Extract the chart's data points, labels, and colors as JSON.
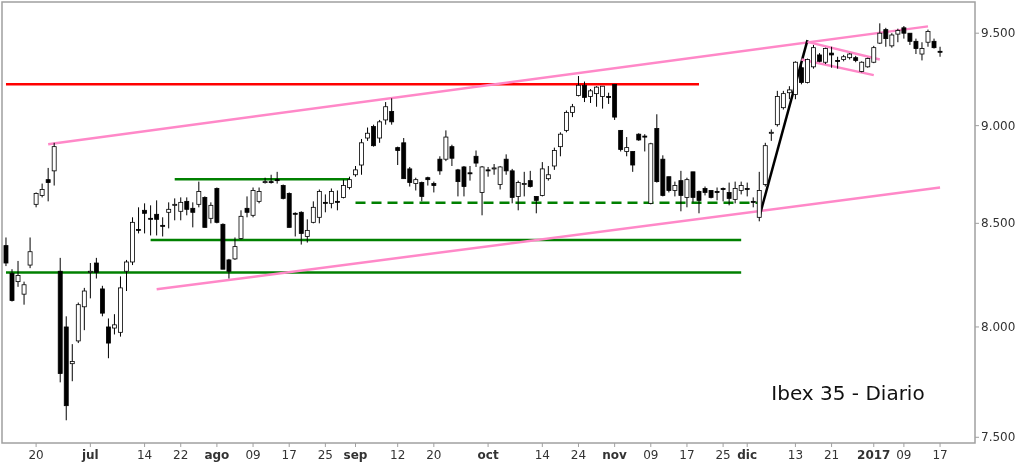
{
  "chart_data": {
    "type": "candlestick",
    "title": "Ibex 35 - Diario",
    "log": true,
    "ylim": [
      7475,
      9675
    ],
    "yticks": [
      {
        "value": 7500,
        "label": "7.500"
      },
      {
        "value": 8000,
        "label": "8.000"
      },
      {
        "value": 8500,
        "label": "8.500"
      },
      {
        "value": 9000,
        "label": "9.000"
      },
      {
        "value": 9500,
        "label": "9.500"
      }
    ],
    "categories": [
      null,
      null,
      null,
      null,
      null,
      "20",
      null,
      null,
      null,
      null,
      null,
      null,
      null,
      null,
      "jul",
      null,
      null,
      null,
      null,
      null,
      null,
      null,
      null,
      "14",
      null,
      null,
      null,
      null,
      null,
      "22",
      null,
      null,
      null,
      null,
      null,
      "ago",
      null,
      null,
      null,
      null,
      null,
      "09",
      null,
      null,
      null,
      null,
      null,
      "17",
      null,
      null,
      null,
      null,
      null,
      "25",
      null,
      null,
      null,
      null,
      "sep",
      null,
      null,
      null,
      null,
      null,
      null,
      "12",
      null,
      null,
      null,
      null,
      null,
      "20",
      null,
      null,
      null,
      null,
      null,
      null,
      null,
      null,
      "oct",
      null,
      null,
      null,
      null,
      null,
      null,
      null,
      null,
      "14",
      null,
      null,
      null,
      null,
      null,
      "24",
      null,
      null,
      null,
      null,
      null,
      "nov",
      null,
      null,
      null,
      null,
      null,
      "09",
      null,
      null,
      null,
      null,
      null,
      "17",
      null,
      null,
      null,
      null,
      null,
      "25",
      null,
      null,
      null,
      "dic",
      null,
      null,
      null,
      null,
      null,
      null,
      null,
      "13",
      null,
      null,
      null,
      null,
      null,
      "21",
      null,
      null,
      null,
      null,
      null,
      null,
      "2017",
      null,
      null,
      null,
      null,
      "09",
      null,
      null,
      null,
      null,
      null,
      "17"
    ],
    "color": "#000000",
    "ohlc": [
      [
        8390,
        8430,
        8290,
        8305
      ],
      [
        8255,
        8275,
        8120,
        8125
      ],
      [
        8215,
        8315,
        8190,
        8245
      ],
      [
        8155,
        8215,
        8105,
        8200
      ],
      [
        8295,
        8430,
        8280,
        8360
      ],
      [
        8595,
        8655,
        8580,
        8650
      ],
      [
        8640,
        8700,
        8630,
        8670
      ],
      [
        8720,
        8780,
        8610,
        8705
      ],
      [
        8765,
        8910,
        8690,
        8890
      ],
      [
        8265,
        8330,
        7745,
        7785
      ],
      [
        8000,
        8050,
        7575,
        7640
      ],
      [
        7830,
        7920,
        7750,
        7840
      ],
      [
        7935,
        8115,
        7925,
        8105
      ],
      [
        8095,
        8185,
        7985,
        8170
      ],
      [
        8260,
        8305,
        8135,
        8265
      ],
      [
        8305,
        8330,
        8230,
        8260
      ],
      [
        8180,
        8195,
        8050,
        8065
      ],
      [
        8000,
        8040,
        7855,
        7925
      ],
      [
        7995,
        8060,
        7965,
        8010
      ],
      [
        7975,
        8240,
        7955,
        8185
      ],
      [
        8265,
        8320,
        8170,
        8310
      ],
      [
        8310,
        8530,
        8295,
        8505
      ],
      [
        8470,
        8580,
        8450,
        8465
      ],
      [
        8565,
        8600,
        8450,
        8550
      ],
      [
        8525,
        8590,
        8440,
        8520
      ],
      [
        8545,
        8615,
        8440,
        8520
      ],
      [
        8490,
        8530,
        8435,
        8485
      ],
      [
        8555,
        8605,
        8475,
        8570
      ],
      [
        8590,
        8625,
        8515,
        8595
      ],
      [
        8560,
        8630,
        8515,
        8605
      ],
      [
        8610,
        8630,
        8540,
        8570
      ],
      [
        8575,
        8605,
        8480,
        8555
      ],
      [
        8595,
        8710,
        8580,
        8660
      ],
      [
        8630,
        8635,
        8480,
        8480
      ],
      [
        8525,
        8605,
        8500,
        8590
      ],
      [
        8675,
        8680,
        8500,
        8505
      ],
      [
        8495,
        8500,
        8275,
        8275
      ],
      [
        8320,
        8325,
        8230,
        8265
      ],
      [
        8325,
        8430,
        8320,
        8385
      ],
      [
        8425,
        8565,
        8420,
        8535
      ],
      [
        8575,
        8635,
        8530,
        8555
      ],
      [
        8540,
        8680,
        8530,
        8665
      ],
      [
        8610,
        8680,
        8600,
        8660
      ],
      [
        8705,
        8730,
        8700,
        8710
      ],
      [
        8710,
        8745,
        8700,
        8705
      ],
      [
        8720,
        8760,
        8700,
        8715
      ],
      [
        8690,
        8695,
        8620,
        8625
      ],
      [
        8650,
        8655,
        8480,
        8480
      ],
      [
        8550,
        8555,
        8435,
        8545
      ],
      [
        8555,
        8560,
        8395,
        8450
      ],
      [
        8435,
        8520,
        8405,
        8465
      ],
      [
        8505,
        8610,
        8500,
        8580
      ],
      [
        8530,
        8670,
        8500,
        8660
      ],
      [
        8605,
        8645,
        8555,
        8600
      ],
      [
        8600,
        8675,
        8575,
        8660
      ],
      [
        8610,
        8665,
        8565,
        8605
      ],
      [
        8630,
        8720,
        8625,
        8690
      ],
      [
        8680,
        8735,
        8670,
        8720
      ],
      [
        8745,
        8790,
        8735,
        8770
      ],
      [
        8795,
        8930,
        8745,
        8910
      ],
      [
        8935,
        8990,
        8920,
        8960
      ],
      [
        8995,
        9005,
        8890,
        8895
      ],
      [
        8935,
        9030,
        8910,
        9020
      ],
      [
        9030,
        9125,
        9005,
        9100
      ],
      [
        9075,
        9145,
        9005,
        9020
      ],
      [
        8885,
        8890,
        8795,
        8870
      ],
      [
        8910,
        8935,
        8725,
        8725
      ],
      [
        8775,
        8785,
        8685,
        8705
      ],
      [
        8700,
        8730,
        8665,
        8720
      ],
      [
        8705,
        8710,
        8610,
        8635
      ],
      [
        8730,
        8735,
        8690,
        8720
      ],
      [
        8700,
        8710,
        8655,
        8690
      ],
      [
        8825,
        8840,
        8745,
        8765
      ],
      [
        8825,
        8975,
        8815,
        8940
      ],
      [
        8890,
        8900,
        8790,
        8830
      ],
      [
        8770,
        8775,
        8635,
        8710
      ],
      [
        8785,
        8790,
        8635,
        8685
      ],
      [
        8755,
        8790,
        8715,
        8750
      ],
      [
        8840,
        8870,
        8785,
        8805
      ],
      [
        8655,
        8790,
        8540,
        8785
      ],
      [
        8770,
        8785,
        8735,
        8765
      ],
      [
        8775,
        8800,
        8745,
        8780
      ],
      [
        8695,
        8790,
        8670,
        8785
      ],
      [
        8825,
        8850,
        8745,
        8765
      ],
      [
        8765,
        8775,
        8600,
        8630
      ],
      [
        8635,
        8715,
        8565,
        8705
      ],
      [
        8695,
        8760,
        8635,
        8700
      ],
      [
        8715,
        8765,
        8680,
        8685
      ],
      [
        8635,
        8635,
        8550,
        8615
      ],
      [
        8640,
        8810,
        8635,
        8775
      ],
      [
        8725,
        8790,
        8715,
        8745
      ],
      [
        8790,
        8885,
        8770,
        8870
      ],
      [
        8890,
        8965,
        8840,
        8955
      ],
      [
        8975,
        9080,
        8965,
        9070
      ],
      [
        9070,
        9115,
        9045,
        9100
      ],
      [
        9160,
        9265,
        9155,
        9215
      ],
      [
        9215,
        9235,
        9125,
        9150
      ],
      [
        9155,
        9195,
        9120,
        9185
      ],
      [
        9170,
        9210,
        9100,
        9205
      ],
      [
        9155,
        9210,
        9090,
        9210
      ],
      [
        9155,
        9175,
        9115,
        9150
      ],
      [
        9220,
        9220,
        9030,
        9045
      ],
      [
        8975,
        8975,
        8865,
        8875
      ],
      [
        8865,
        8940,
        8840,
        8885
      ],
      [
        8865,
        8865,
        8760,
        8795
      ],
      [
        8955,
        8960,
        8920,
        8925
      ],
      [
        8945,
        8955,
        8865,
        8940
      ],
      [
        8600,
        8910,
        8595,
        8905
      ],
      [
        8985,
        9060,
        8705,
        8710
      ],
      [
        8825,
        8845,
        8635,
        8640
      ],
      [
        8735,
        8735,
        8655,
        8665
      ],
      [
        8665,
        8710,
        8635,
        8690
      ],
      [
        8715,
        8765,
        8560,
        8640
      ],
      [
        8630,
        8730,
        8580,
        8720
      ],
      [
        8760,
        8760,
        8605,
        8630
      ],
      [
        8660,
        8665,
        8550,
        8615
      ],
      [
        8675,
        8685,
        8640,
        8655
      ],
      [
        8665,
        8665,
        8625,
        8630
      ],
      [
        8660,
        8680,
        8615,
        8655
      ],
      [
        8675,
        8680,
        8610,
        8670
      ],
      [
        8655,
        8705,
        8590,
        8625
      ],
      [
        8620,
        8710,
        8600,
        8675
      ],
      [
        8665,
        8710,
        8645,
        8690
      ],
      [
        8675,
        8705,
        8635,
        8670
      ],
      [
        8610,
        8630,
        8580,
        8605
      ],
      [
        8530,
        8760,
        8510,
        8665
      ],
      [
        8695,
        8910,
        8685,
        8895
      ],
      [
        8960,
        8980,
        8920,
        8965
      ],
      [
        9005,
        9185,
        8995,
        9155
      ],
      [
        9095,
        9185,
        9085,
        9170
      ],
      [
        9175,
        9210,
        9140,
        9190
      ],
      [
        9165,
        9345,
        9140,
        9340
      ],
      [
        9310,
        9345,
        9220,
        9230
      ],
      [
        9230,
        9360,
        9225,
        9355
      ],
      [
        9315,
        9435,
        9305,
        9420
      ],
      [
        9380,
        9390,
        9340,
        9345
      ],
      [
        9340,
        9420,
        9330,
        9415
      ],
      [
        9390,
        9425,
        9310,
        9380
      ],
      [
        9350,
        9370,
        9305,
        9345
      ],
      [
        9355,
        9380,
        9345,
        9370
      ],
      [
        9365,
        9390,
        9355,
        9385
      ],
      [
        9365,
        9375,
        9340,
        9350
      ],
      [
        9290,
        9345,
        9285,
        9340
      ],
      [
        9315,
        9365,
        9310,
        9360
      ],
      [
        9340,
        9430,
        9335,
        9420
      ],
      [
        9445,
        9555,
        9440,
        9500
      ],
      [
        9520,
        9530,
        9425,
        9470
      ],
      [
        9430,
        9500,
        9420,
        9490
      ],
      [
        9495,
        9525,
        9450,
        9515
      ],
      [
        9530,
        9540,
        9470,
        9500
      ],
      [
        9500,
        9500,
        9435,
        9455
      ],
      [
        9455,
        9470,
        9385,
        9415
      ],
      [
        9385,
        9450,
        9350,
        9415
      ],
      [
        9450,
        9520,
        9425,
        9510
      ],
      [
        9455,
        9470,
        9415,
        9420
      ],
      [
        9400,
        9425,
        9370,
        9395
      ]
    ],
    "series": [
      {
        "type": "line",
        "color": "#ff0000",
        "values": [
          9220,
          null,
          null,
          null,
          null,
          null,
          null,
          null,
          null,
          null,
          null,
          null,
          null,
          null,
          null,
          null,
          null,
          null,
          null,
          null,
          null,
          null,
          null,
          null,
          null,
          null,
          null,
          null,
          null,
          null,
          null,
          null,
          null,
          null,
          null,
          null,
          null,
          null,
          null,
          null,
          null,
          null,
          null,
          null,
          null,
          null,
          null,
          null,
          null,
          null,
          null,
          null,
          null,
          null,
          null,
          null,
          null,
          null,
          null,
          null,
          null,
          null,
          null,
          null,
          null,
          null,
          null,
          null,
          null,
          null,
          null,
          null,
          null,
          null,
          null,
          null,
          null,
          null,
          null,
          null,
          null,
          null,
          null,
          null,
          null,
          null,
          null,
          null,
          null,
          null,
          null,
          null,
          null,
          null,
          null,
          null,
          null,
          null,
          null,
          null,
          null,
          null,
          null,
          null,
          null,
          null,
          null,
          null,
          null,
          null,
          null,
          null,
          null,
          null,
          null,
          9220,
          null,
          null,
          null,
          null,
          null,
          null,
          null,
          null,
          null,
          null,
          null,
          null,
          null,
          null,
          null,
          null,
          null,
          null,
          null,
          null,
          null,
          null,
          null,
          null,
          null,
          null,
          null,
          null,
          null,
          null,
          null,
          null,
          null,
          null,
          null,
          null,
          null,
          null,
          null,
          null
        ]
      },
      {
        "type": "line",
        "color": "#008000",
        "values": [
          8259,
          null,
          null,
          null,
          null,
          null,
          null,
          null,
          null,
          null,
          null,
          null,
          null,
          null,
          null,
          null,
          null,
          null,
          null,
          null,
          null,
          null,
          null,
          null,
          null,
          null,
          null,
          null,
          null,
          null,
          null,
          null,
          null,
          null,
          null,
          null,
          null,
          null,
          null,
          null,
          null,
          null,
          null,
          null,
          null,
          null,
          null,
          null,
          null,
          null,
          null,
          null,
          null,
          null,
          null,
          null,
          null,
          null,
          null,
          null,
          null,
          null,
          null,
          null,
          null,
          null,
          null,
          null,
          null,
          null,
          null,
          null,
          null,
          null,
          null,
          null,
          null,
          null,
          null,
          null,
          null,
          null,
          null,
          null,
          null,
          null,
          null,
          null,
          null,
          null,
          null,
          null,
          null,
          null,
          null,
          null,
          null,
          null,
          null,
          null,
          null,
          null,
          null,
          null,
          null,
          null,
          null,
          null,
          null,
          null,
          null,
          null,
          null,
          null,
          null,
          null,
          null,
          null,
          null,
          null,
          null,
          null,
          8259,
          null,
          null,
          null,
          null,
          null,
          null,
          null,
          null,
          null,
          null,
          null,
          null,
          null,
          null,
          null,
          null,
          null,
          null,
          null,
          null,
          null,
          null,
          null,
          null,
          null,
          null,
          null,
          null,
          null,
          null,
          null,
          null,
          null
        ]
      },
      {
        "type": "line",
        "color": "#008000",
        "values": [
          null,
          null,
          null,
          null,
          null,
          null,
          null,
          null,
          null,
          null,
          null,
          null,
          null,
          null,
          null,
          null,
          null,
          null,
          null,
          null,
          null,
          null,
          null,
          null,
          null,
          null,
          null,
          null,
          8722,
          null,
          null,
          null,
          null,
          null,
          null,
          null,
          null,
          null,
          null,
          null,
          null,
          null,
          null,
          null,
          null,
          null,
          null,
          null,
          null,
          null,
          null,
          null,
          null,
          null,
          null,
          null,
          null,
          8722,
          null,
          null,
          null,
          null,
          null,
          null,
          null,
          null,
          null,
          null,
          null,
          null,
          null,
          null,
          null,
          null,
          null,
          null,
          null,
          null,
          null,
          null,
          null,
          null,
          null,
          null,
          null,
          null,
          null,
          null,
          null,
          null,
          null,
          null,
          null,
          null,
          null,
          null,
          null,
          null,
          null,
          null,
          null,
          null,
          null,
          null,
          null,
          null,
          null,
          null,
          null,
          null,
          null,
          null,
          null,
          null,
          null,
          null,
          null,
          null,
          null,
          null,
          null,
          null,
          null,
          null,
          null,
          null,
          null,
          null,
          null,
          null,
          null,
          null,
          null,
          null,
          null,
          null,
          null,
          null,
          null,
          null,
          null,
          null,
          null,
          null,
          null,
          null,
          null,
          null,
          null,
          null,
          null,
          null,
          null,
          null,
          null,
          null
        ]
      },
      {
        "type": "line",
        "color": "#008000",
        "values": [
          null,
          null,
          null,
          null,
          null,
          null,
          null,
          null,
          null,
          null,
          null,
          null,
          null,
          null,
          null,
          null,
          null,
          null,
          null,
          null,
          null,
          null,
          null,
          null,
          8418,
          null,
          null,
          null,
          null,
          null,
          null,
          null,
          null,
          null,
          null,
          null,
          null,
          null,
          null,
          null,
          null,
          null,
          null,
          null,
          null,
          null,
          null,
          null,
          null,
          null,
          null,
          null,
          null,
          null,
          null,
          null,
          null,
          null,
          null,
          null,
          null,
          null,
          null,
          null,
          null,
          null,
          null,
          null,
          null,
          null,
          null,
          null,
          null,
          null,
          null,
          null,
          null,
          null,
          null,
          null,
          null,
          null,
          null,
          null,
          null,
          null,
          null,
          null,
          null,
          null,
          null,
          null,
          null,
          null,
          null,
          null,
          null,
          null,
          null,
          null,
          null,
          null,
          null,
          null,
          null,
          null,
          null,
          null,
          null,
          null,
          null,
          null,
          null,
          null,
          null,
          null,
          null,
          null,
          null,
          null,
          null,
          null,
          8418,
          null,
          null,
          null,
          null,
          null,
          null,
          null,
          null,
          null,
          null,
          null,
          null,
          null,
          null,
          null,
          null,
          null,
          null,
          null,
          null,
          null,
          null,
          null,
          null,
          null,
          null,
          null,
          null,
          null,
          null,
          null,
          null,
          null
        ]
      },
      {
        "type": "line",
        "color": "#008000",
        "line_style": "dashed",
        "values": [
          null,
          null,
          null,
          null,
          null,
          null,
          null,
          null,
          null,
          null,
          null,
          null,
          null,
          null,
          null,
          null,
          null,
          null,
          null,
          null,
          null,
          null,
          null,
          null,
          null,
          null,
          null,
          null,
          null,
          null,
          null,
          null,
          null,
          null,
          null,
          null,
          null,
          null,
          null,
          null,
          null,
          null,
          null,
          null,
          null,
          null,
          null,
          null,
          null,
          null,
          null,
          null,
          null,
          null,
          null,
          null,
          null,
          null,
          8603,
          null,
          null,
          null,
          null,
          null,
          null,
          null,
          null,
          null,
          null,
          null,
          null,
          null,
          null,
          null,
          null,
          null,
          null,
          null,
          null,
          null,
          null,
          null,
          null,
          null,
          null,
          null,
          null,
          null,
          null,
          null,
          null,
          null,
          null,
          null,
          null,
          null,
          null,
          null,
          null,
          null,
          null,
          null,
          null,
          null,
          null,
          null,
          null,
          null,
          null,
          null,
          null,
          null,
          null,
          null,
          null,
          null,
          null,
          null,
          null,
          null,
          null,
          null,
          null,
          null,
          null,
          8603,
          null,
          null,
          null,
          null,
          null,
          null,
          null,
          null,
          null,
          null,
          null,
          null,
          null,
          null,
          null,
          null,
          null,
          null,
          null,
          null,
          null,
          null,
          null,
          null,
          null,
          null,
          null,
          null,
          null,
          null
        ]
      },
      {
        "type": "line",
        "color": "#ff88c8",
        "values": [
          null,
          null,
          null,
          null,
          null,
          null,
          null,
          8903,
          null,
          null,
          null,
          null,
          null,
          null,
          null,
          null,
          null,
          null,
          null,
          null,
          null,
          null,
          null,
          null,
          null,
          null,
          null,
          null,
          null,
          null,
          null,
          null,
          null,
          null,
          null,
          null,
          null,
          null,
          null,
          null,
          null,
          null,
          null,
          null,
          null,
          null,
          null,
          null,
          null,
          null,
          null,
          null,
          null,
          null,
          null,
          null,
          null,
          null,
          null,
          null,
          null,
          null,
          null,
          null,
          null,
          null,
          null,
          null,
          null,
          null,
          null,
          null,
          null,
          null,
          null,
          null,
          null,
          null,
          null,
          null,
          null,
          null,
          null,
          null,
          null,
          null,
          null,
          null,
          null,
          null,
          null,
          null,
          null,
          null,
          null,
          null,
          null,
          null,
          null,
          null,
          null,
          null,
          null,
          null,
          null,
          null,
          null,
          null,
          null,
          null,
          null,
          null,
          null,
          null,
          null,
          null,
          null,
          null,
          null,
          null,
          null,
          null,
          null,
          null,
          null,
          null,
          null,
          null,
          null,
          null,
          null,
          null,
          null,
          null,
          null,
          null,
          null,
          null,
          null,
          null,
          null,
          null,
          null,
          null,
          null,
          null,
          null,
          null,
          null,
          null,
          null,
          null,
          null,
          9538,
          null,
          null
        ]
      },
      {
        "type": "line",
        "color": "#ff88c8",
        "values": [
          null,
          null,
          null,
          null,
          null,
          null,
          null,
          null,
          null,
          null,
          null,
          null,
          null,
          null,
          null,
          null,
          null,
          null,
          null,
          null,
          null,
          null,
          null,
          null,
          null,
          8178,
          null,
          null,
          null,
          null,
          null,
          null,
          null,
          null,
          null,
          null,
          null,
          null,
          null,
          null,
          null,
          null,
          null,
          null,
          null,
          null,
          null,
          null,
          null,
          null,
          null,
          null,
          null,
          null,
          null,
          null,
          null,
          null,
          null,
          null,
          null,
          null,
          null,
          null,
          null,
          null,
          null,
          null,
          null,
          null,
          null,
          null,
          null,
          null,
          null,
          null,
          null,
          null,
          null,
          null,
          null,
          null,
          null,
          null,
          null,
          null,
          null,
          null,
          null,
          null,
          null,
          null,
          null,
          null,
          null,
          null,
          null,
          null,
          null,
          null,
          null,
          null,
          null,
          null,
          null,
          null,
          null,
          null,
          null,
          null,
          null,
          null,
          null,
          null,
          null,
          null,
          null,
          null,
          null,
          null,
          null,
          null,
          null,
          null,
          null,
          null,
          null,
          null,
          null,
          null,
          null,
          null,
          null,
          null,
          null,
          null,
          null,
          null,
          null,
          null,
          null,
          null,
          null,
          null,
          null,
          null,
          null,
          null,
          null,
          null,
          null,
          null,
          null,
          null,
          null,
          8680
        ]
      },
      {
        "type": "line",
        "color": "#000000",
        "values": [
          null,
          null,
          null,
          null,
          null,
          null,
          null,
          null,
          null,
          null,
          null,
          null,
          null,
          null,
          null,
          null,
          null,
          null,
          null,
          null,
          null,
          null,
          null,
          null,
          null,
          null,
          null,
          null,
          null,
          null,
          null,
          null,
          null,
          null,
          null,
          null,
          null,
          null,
          null,
          null,
          null,
          null,
          null,
          null,
          null,
          null,
          null,
          null,
          null,
          null,
          null,
          null,
          null,
          null,
          null,
          null,
          null,
          null,
          null,
          null,
          null,
          null,
          null,
          null,
          null,
          null,
          null,
          null,
          null,
          null,
          null,
          null,
          null,
          null,
          null,
          null,
          null,
          null,
          null,
          null,
          null,
          null,
          null,
          null,
          null,
          null,
          null,
          null,
          null,
          null,
          null,
          null,
          null,
          null,
          null,
          null,
          null,
          null,
          null,
          null,
          null,
          null,
          null,
          null,
          null,
          null,
          null,
          null,
          null,
          null,
          null,
          null,
          null,
          null,
          null,
          null,
          null,
          null,
          null,
          null,
          null,
          null,
          null,
          null,
          null,
          8531,
          null,
          null,
          null,
          null,
          null,
          null,
          null,
          9462,
          null,
          null,
          null,
          null,
          null,
          null,
          null,
          null,
          null,
          null,
          null,
          null,
          null,
          null,
          null,
          null,
          null,
          null,
          null,
          null,
          null,
          null
        ]
      },
      {
        "type": "line",
        "color": "#ff88c8",
        "values": [
          null,
          null,
          null,
          null,
          null,
          null,
          null,
          null,
          null,
          null,
          null,
          null,
          null,
          null,
          null,
          null,
          null,
          null,
          null,
          null,
          null,
          null,
          null,
          null,
          null,
          null,
          null,
          null,
          null,
          null,
          null,
          null,
          null,
          null,
          null,
          null,
          null,
          null,
          null,
          null,
          null,
          null,
          null,
          null,
          null,
          null,
          null,
          null,
          null,
          null,
          null,
          null,
          null,
          null,
          null,
          null,
          null,
          null,
          null,
          null,
          null,
          null,
          null,
          null,
          null,
          null,
          null,
          null,
          null,
          null,
          null,
          null,
          null,
          null,
          null,
          null,
          null,
          null,
          null,
          null,
          null,
          null,
          null,
          null,
          null,
          null,
          null,
          null,
          null,
          null,
          null,
          null,
          null,
          null,
          null,
          null,
          null,
          null,
          null,
          null,
          null,
          null,
          null,
          null,
          null,
          null,
          null,
          null,
          null,
          null,
          null,
          null,
          null,
          null,
          null,
          null,
          null,
          null,
          null,
          null,
          null,
          null,
          null,
          null,
          null,
          null,
          null,
          null,
          null,
          null,
          null,
          null,
          null,
          9452,
          null,
          null,
          null,
          null,
          null,
          null,
          null,
          null,
          null,
          null,
          null,
          9355,
          null,
          null,
          null,
          null,
          null,
          null,
          null,
          null,
          null,
          null
        ]
      },
      {
        "type": "line",
        "color": "#ff88c8",
        "values": [
          null,
          null,
          null,
          null,
          null,
          null,
          null,
          null,
          null,
          null,
          null,
          null,
          null,
          null,
          null,
          null,
          null,
          null,
          null,
          null,
          null,
          null,
          null,
          null,
          null,
          null,
          null,
          null,
          null,
          null,
          null,
          null,
          null,
          null,
          null,
          null,
          null,
          null,
          null,
          null,
          null,
          null,
          null,
          null,
          null,
          null,
          null,
          null,
          null,
          null,
          null,
          null,
          null,
          null,
          null,
          null,
          null,
          null,
          null,
          null,
          null,
          null,
          null,
          null,
          null,
          null,
          null,
          null,
          null,
          null,
          null,
          null,
          null,
          null,
          null,
          null,
          null,
          null,
          null,
          null,
          null,
          null,
          null,
          null,
          null,
          null,
          null,
          null,
          null,
          null,
          null,
          null,
          null,
          null,
          null,
          null,
          null,
          null,
          null,
          null,
          null,
          null,
          null,
          null,
          null,
          null,
          null,
          null,
          null,
          null,
          null,
          null,
          null,
          null,
          null,
          null,
          null,
          null,
          null,
          null,
          null,
          null,
          null,
          null,
          null,
          null,
          null,
          null,
          null,
          null,
          null,
          null,
          9355,
          null,
          null,
          null,
          null,
          null,
          null,
          null,
          null,
          null,
          null,
          null,
          9270,
          null,
          null,
          null,
          null,
          null,
          null,
          null,
          null,
          null,
          null,
          null
        ]
      }
    ]
  }
}
